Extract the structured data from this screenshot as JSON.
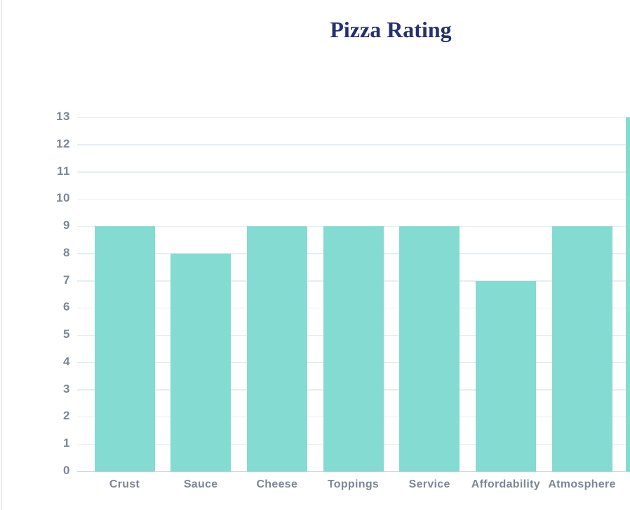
{
  "chart_data": {
    "type": "bar",
    "title": "Pizza Rating",
    "categories": [
      "Crust",
      "Sauce",
      "Cheese",
      "Toppings",
      "Service",
      "Affordability",
      "Atmosphere"
    ],
    "values": [
      9,
      8,
      9,
      9,
      9,
      7,
      9
    ],
    "partial_eighth_bar": {
      "value": 13,
      "label_visible": false
    },
    "xlabel": "",
    "ylabel": "",
    "ylim": [
      0,
      13
    ],
    "yticks": [
      0,
      1,
      2,
      3,
      4,
      5,
      6,
      7,
      8,
      9,
      10,
      11,
      12,
      13
    ],
    "grid": true,
    "legend_position": "none",
    "colors": {
      "bar_fill": "#84dbd1",
      "title_text": "#243070",
      "axis_tick_text": "#7d8894",
      "gridline": "#e6edf3",
      "zero_line": "#c7cfd7",
      "page_border": "#e9e9e9",
      "background": "#ffffff"
    }
  }
}
